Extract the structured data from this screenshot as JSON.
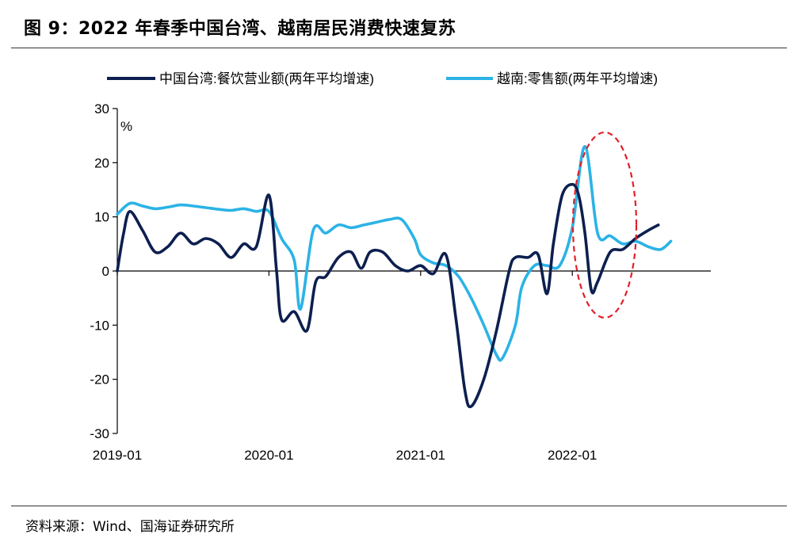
{
  "header": {
    "title": "图 9：2022 年春季中国台湾、越南居民消费快速复苏"
  },
  "footer": {
    "source": "资料来源：Wind、国海证券研究所"
  },
  "chart_data": {
    "type": "line",
    "unit_label": "%",
    "ylim": [
      -30,
      30
    ],
    "yticks": [
      30,
      20,
      10,
      0,
      -10,
      -20,
      -30
    ],
    "x_tick_labels": [
      "2019-01",
      "2020-01",
      "2021-01",
      "2022-01"
    ],
    "x_tick_months": [
      0,
      12,
      24,
      36
    ],
    "grid": false,
    "legend_position": "top",
    "annotation": "red dashed ellipse highlighting 2022 spring rebound",
    "colors": {
      "taiwan": "#0d1f4f",
      "vietnam": "#2bb3e6",
      "ellipse": "#e0202a"
    },
    "series": [
      {
        "key": "taiwan",
        "name": "中国台湾:餐饮营业额(两年平均增速)",
        "points": [
          [
            0,
            0
          ],
          [
            0.5,
            7
          ],
          [
            1,
            11
          ],
          [
            2,
            7.5
          ],
          [
            3,
            3.5
          ],
          [
            4,
            4.5
          ],
          [
            5,
            7
          ],
          [
            6,
            5
          ],
          [
            7,
            6
          ],
          [
            8,
            5
          ],
          [
            9,
            2.5
          ],
          [
            10,
            5
          ],
          [
            11,
            4.5
          ],
          [
            12,
            14
          ],
          [
            12.6,
            0
          ],
          [
            13,
            -9
          ],
          [
            14,
            -7.5
          ],
          [
            15,
            -11
          ],
          [
            15.7,
            -2
          ],
          [
            16.5,
            -1
          ],
          [
            17.5,
            2.5
          ],
          [
            18.5,
            3.5
          ],
          [
            19.3,
            0.5
          ],
          [
            20,
            3.5
          ],
          [
            21,
            3.5
          ],
          [
            22,
            1
          ],
          [
            23,
            0
          ],
          [
            24,
            1
          ],
          [
            25,
            -0.5
          ],
          [
            26,
            3
          ],
          [
            26.8,
            -9
          ],
          [
            27.5,
            -22
          ],
          [
            28,
            -25
          ],
          [
            29,
            -20
          ],
          [
            30,
            -11
          ],
          [
            31,
            0
          ],
          [
            31.5,
            2.5
          ],
          [
            32.5,
            2.5
          ],
          [
            33.3,
            3
          ],
          [
            34,
            -4.2
          ],
          [
            34.5,
            5
          ],
          [
            35.2,
            14
          ],
          [
            36,
            16
          ],
          [
            36.5,
            14
          ],
          [
            37,
            7
          ],
          [
            37.5,
            -3.5
          ],
          [
            38,
            -2
          ],
          [
            39,
            3.5
          ],
          [
            40,
            4
          ],
          [
            41,
            6
          ],
          [
            42,
            7.5
          ],
          [
            42.8,
            8.5
          ]
        ]
      },
      {
        "key": "vietnam",
        "name": "越南:零售额(两年平均增速)",
        "points": [
          [
            0,
            10.5
          ],
          [
            1,
            12.5
          ],
          [
            2,
            12
          ],
          [
            3,
            11.5
          ],
          [
            4,
            11.8
          ],
          [
            5,
            12.2
          ],
          [
            6,
            12
          ],
          [
            7,
            11.7
          ],
          [
            8,
            11.4
          ],
          [
            9,
            11.2
          ],
          [
            10,
            11.5
          ],
          [
            11,
            11
          ],
          [
            12,
            11
          ],
          [
            13,
            6
          ],
          [
            14,
            2
          ],
          [
            14.5,
            -7
          ],
          [
            15.5,
            7.5
          ],
          [
            16.5,
            7
          ],
          [
            17.5,
            8.5
          ],
          [
            18.5,
            8
          ],
          [
            19.5,
            8.5
          ],
          [
            20.5,
            9
          ],
          [
            21.5,
            9.5
          ],
          [
            22.5,
            9.5
          ],
          [
            23.5,
            6
          ],
          [
            24,
            3
          ],
          [
            25,
            1.5
          ],
          [
            26,
            1
          ],
          [
            27,
            -1
          ],
          [
            28,
            -5
          ],
          [
            29,
            -10
          ],
          [
            30,
            -15.5
          ],
          [
            30.5,
            -16
          ],
          [
            31.5,
            -10
          ],
          [
            32,
            -3
          ],
          [
            33,
            1
          ],
          [
            34,
            1
          ],
          [
            35,
            1
          ],
          [
            36,
            8
          ],
          [
            37,
            23
          ],
          [
            38,
            7
          ],
          [
            39,
            6.5
          ],
          [
            40,
            5
          ],
          [
            41,
            5.5
          ],
          [
            42,
            4.5
          ],
          [
            43,
            4
          ],
          [
            43.8,
            5.5
          ]
        ]
      }
    ]
  }
}
